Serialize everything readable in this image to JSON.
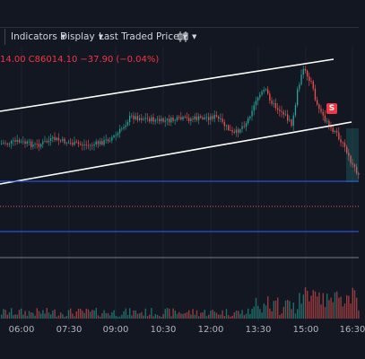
{
  "toolbar": {
    "indicators_label": "Indicators",
    "display_label": "Display",
    "price_source_label": "Last Traded Price",
    "chart_type_icon": "candles-icon",
    "caret_glyph": "▼"
  },
  "legend": {
    "low": "14.00",
    "close_prefix": "C",
    "close": "86014.10",
    "change": "−37.90",
    "change_pct": "(−0.04%)"
  },
  "marker": {
    "label": "S"
  },
  "xaxis": {
    "ticks": [
      "06:00",
      "07:30",
      "09:00",
      "10:30",
      "12:00",
      "13:30",
      "15:00",
      "16:30"
    ]
  },
  "colors": {
    "background": "#131722",
    "up": "#26a69a",
    "down": "#ef5350",
    "channel_line": "#ffffff",
    "horizontal_line": "#2962ff",
    "dotted_line": "#f7525f",
    "marker": "#f23645"
  }
}
